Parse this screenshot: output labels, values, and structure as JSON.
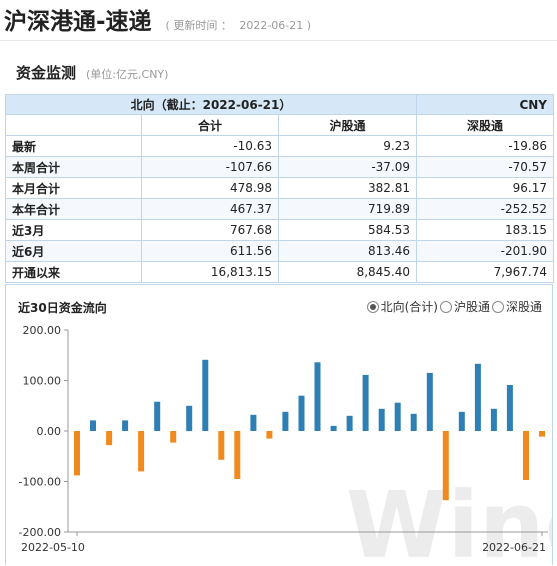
{
  "page": {
    "title": "沪深港通-速递",
    "update_label": "( 更新时间 ：",
    "update_time": "2022-06-21 )"
  },
  "section": {
    "title": "资金监测",
    "unit": "(单位:亿元,CNY)"
  },
  "table": {
    "header_main": "北向（截止：2022-06-21）",
    "currency": "CNY",
    "columns": [
      "合计",
      "沪股通",
      "深股通"
    ],
    "rows": [
      {
        "label": "最新",
        "values": [
          "-10.63",
          "9.23",
          "-19.86"
        ]
      },
      {
        "label": "本周合计",
        "values": [
          "-107.66",
          "-37.09",
          "-70.57"
        ]
      },
      {
        "label": "本月合计",
        "values": [
          "478.98",
          "382.81",
          "96.17"
        ]
      },
      {
        "label": "本年合计",
        "values": [
          "467.37",
          "719.89",
          "-252.52"
        ]
      },
      {
        "label": "近3月",
        "values": [
          "767.68",
          "584.53",
          "183.15"
        ]
      },
      {
        "label": "近6月",
        "values": [
          "611.56",
          "813.46",
          "-201.90"
        ]
      },
      {
        "label": "开通以来",
        "values": [
          "16,813.15",
          "8,845.40",
          "7,967.74"
        ]
      }
    ]
  },
  "chart_panel": {
    "title": "近30日资金流向",
    "legend": [
      {
        "label": "北向(合计)",
        "selected": true
      },
      {
        "label": "沪股通",
        "selected": false
      },
      {
        "label": "深股通",
        "selected": false
      }
    ],
    "watermark": "Wind"
  },
  "chart_data": {
    "type": "bar",
    "title": "近30日资金流向",
    "series_name": "北向(合计)",
    "ylim": [
      -200,
      200
    ],
    "yticks": [
      "200.00",
      "100.00",
      "0.00",
      "-100.00",
      "-200.00"
    ],
    "x_start_label": "2022-05-10",
    "x_end_label": "2022-06-21",
    "colors": {
      "positive": "#2e7fb3",
      "negative": "#f08a1e"
    },
    "values": [
      -88,
      21,
      -28,
      21,
      -80,
      58,
      -23,
      50,
      141,
      -57,
      -95,
      32,
      -15,
      38,
      70,
      136,
      10,
      30,
      111,
      44,
      56,
      34,
      115,
      -137,
      38,
      133,
      44,
      91,
      -97,
      -11
    ]
  }
}
